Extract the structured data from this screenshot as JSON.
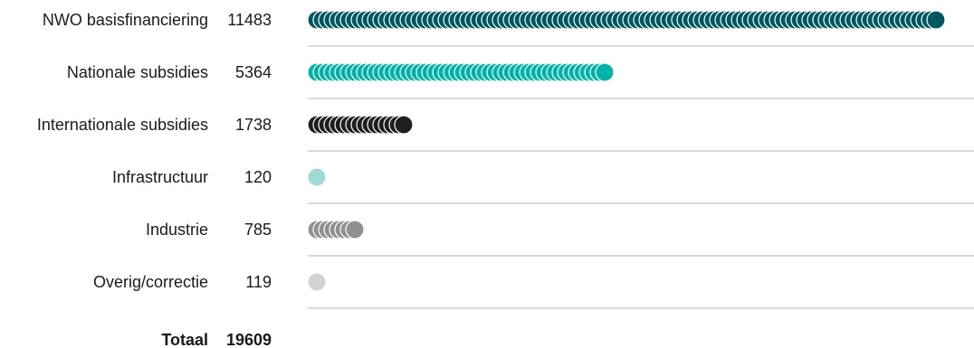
{
  "chart_data": {
    "type": "bar",
    "title": "",
    "categories": [
      "NWO basisfinanciering",
      "Nationale subsidies",
      "Internationale subsidies",
      "Infrastructuur",
      "Industrie",
      "Overig/correctie"
    ],
    "values": [
      11483,
      5364,
      1738,
      120,
      785,
      119
    ],
    "colors": [
      "#00575e",
      "#00b2a7",
      "#1e1e1e",
      "#9fdbd5",
      "#8f8f8f",
      "#d2d2d2"
    ],
    "total_label": "Totaal",
    "total_value": 19609,
    "grid": true
  }
}
